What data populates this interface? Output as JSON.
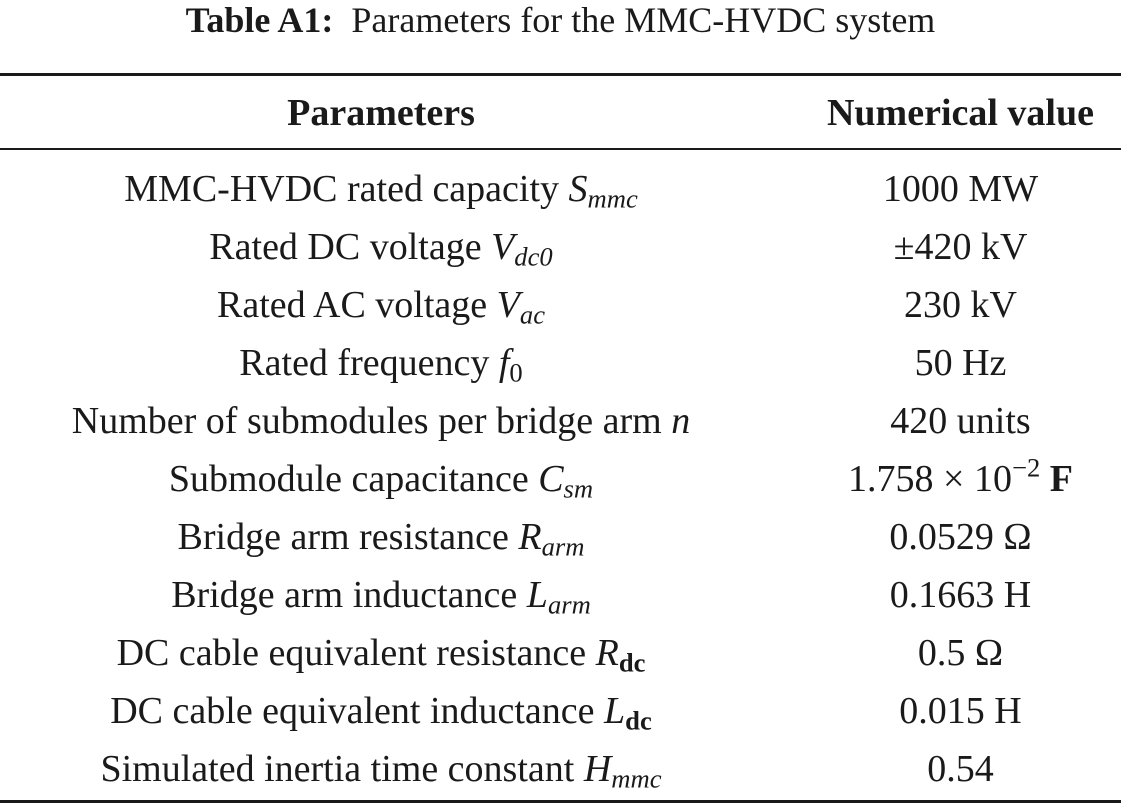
{
  "caption": {
    "label": "Table A1:",
    "text": "Parameters for the MMC-HVDC system"
  },
  "table": {
    "headers": [
      "Parameters",
      "Numerical value"
    ],
    "rows": [
      {
        "name": "MMC-HVDC rated capacity",
        "symbol": "S",
        "subscript": "mmc",
        "value": "1000 MW"
      },
      {
        "name": "Rated DC voltage",
        "symbol": "V",
        "subscript": "dc0",
        "value": "±420 kV"
      },
      {
        "name": "Rated AC voltage",
        "symbol": "V",
        "subscript": "ac",
        "value": "230 kV"
      },
      {
        "name": "Rated frequency",
        "symbol": "f",
        "subscript": "0",
        "value": "50 Hz"
      },
      {
        "name": "Number of submodules per bridge arm",
        "symbol": "n",
        "subscript": "",
        "value": "420 units"
      },
      {
        "name": "Submodule capacitance",
        "symbol": "C",
        "subscript": "sm",
        "value_base": "1.758 × 10",
        "value_exp": "−2",
        "value_unit": "F"
      },
      {
        "name": "Bridge arm resistance",
        "symbol": "R",
        "subscript": "arm",
        "value": "0.0529 Ω"
      },
      {
        "name": "Bridge arm inductance",
        "symbol": "L",
        "subscript": "arm",
        "value": "0.1663 H"
      },
      {
        "name": "DC cable equivalent resistance",
        "symbol": "R",
        "subscript": "dc",
        "value": "0.5 Ω"
      },
      {
        "name": "DC cable equivalent inductance",
        "symbol": "L",
        "subscript": "dc",
        "value": "0.015 H"
      },
      {
        "name": "Simulated inertia time constant",
        "symbol": "H",
        "subscript": "mmc",
        "value": "0.54"
      }
    ]
  }
}
